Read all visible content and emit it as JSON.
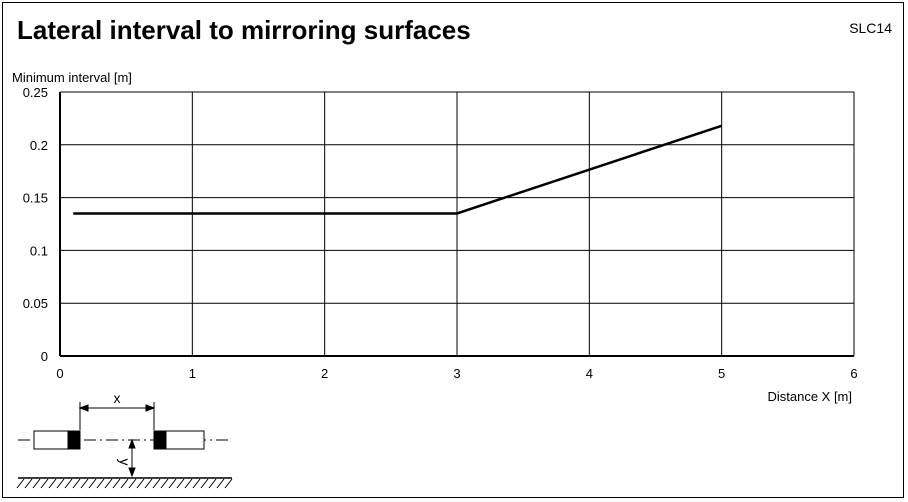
{
  "header": {
    "title": "Lateral interval to mirroring surfaces",
    "code": "SLC14"
  },
  "chart_data": {
    "type": "line",
    "title": "Lateral interval to mirroring surfaces",
    "ylabel": "Minimum interval [m]",
    "xlabel": "Distance X [m]",
    "xlim": [
      0,
      6
    ],
    "ylim": [
      0,
      0.25
    ],
    "xticks": [
      "0",
      "1",
      "2",
      "3",
      "4",
      "5",
      "6"
    ],
    "yticks": [
      "0",
      "0.05",
      "0.1",
      "0.15",
      "0.2",
      "0.25"
    ],
    "grid": true,
    "series": [
      {
        "x": [
          0.1,
          3,
          5
        ],
        "y": [
          0.135,
          0.135,
          0.218
        ]
      }
    ]
  },
  "diagram": {
    "x_label": "x",
    "y_label": "y"
  }
}
